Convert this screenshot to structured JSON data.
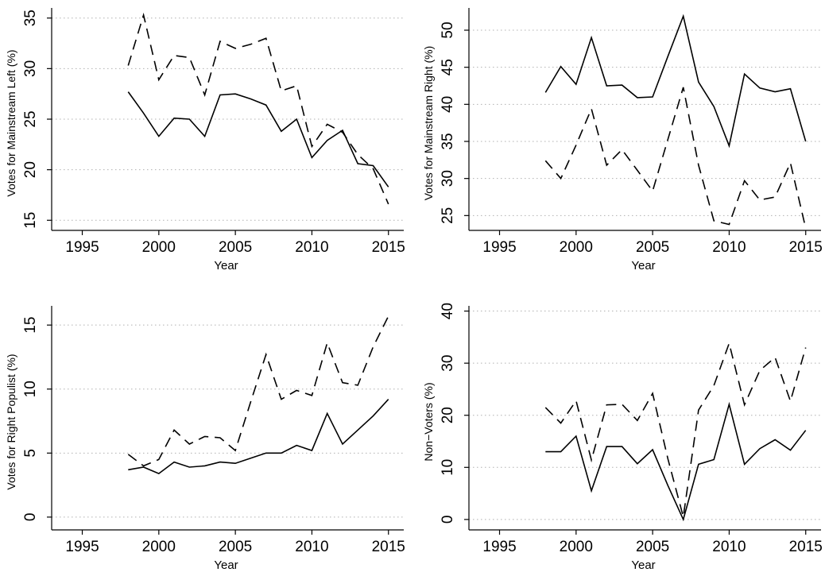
{
  "chart_data": [
    {
      "type": "line",
      "xlabel": "Year",
      "ylabel": "Votes for Mainstream Left (%)",
      "xlim": [
        1993,
        2016
      ],
      "ylim": [
        14,
        36
      ],
      "xticks": [
        1995,
        2000,
        2005,
        2010,
        2015
      ],
      "yticks": [
        15,
        20,
        25,
        30,
        35
      ],
      "grid": true,
      "x": [
        1998,
        1999,
        2000,
        2001,
        2002,
        2003,
        2004,
        2005,
        2006,
        2007,
        2008,
        2009,
        2010,
        2011,
        2012,
        2013,
        2014,
        2015
      ],
      "series": [
        {
          "style": "solid",
          "values": [
            27.7,
            25.6,
            23.3,
            25.1,
            25.0,
            23.3,
            27.4,
            27.5,
            27.0,
            26.4,
            23.8,
            25.0,
            21.2,
            22.9,
            23.9,
            20.6,
            20.4,
            18.3
          ]
        },
        {
          "style": "dashed",
          "values": [
            30.3,
            35.3,
            28.9,
            31.3,
            31.1,
            27.4,
            32.7,
            32.0,
            32.4,
            33.0,
            27.8,
            28.3,
            22.3,
            24.5,
            23.7,
            21.5,
            20.1,
            16.6
          ]
        }
      ]
    },
    {
      "type": "line",
      "xlabel": "Year",
      "ylabel": "Votes for Mainstream Right (%)",
      "xlim": [
        1993,
        2016
      ],
      "ylim": [
        23,
        53
      ],
      "xticks": [
        1995,
        2000,
        2005,
        2010,
        2015
      ],
      "yticks": [
        25,
        30,
        35,
        40,
        45,
        50
      ],
      "grid": true,
      "x": [
        1998,
        1999,
        2000,
        2001,
        2002,
        2003,
        2004,
        2005,
        2006,
        2007,
        2008,
        2009,
        2010,
        2011,
        2012,
        2013,
        2014,
        2015
      ],
      "series": [
        {
          "style": "solid",
          "values": [
            41.6,
            45.1,
            42.7,
            49.0,
            42.5,
            42.6,
            40.9,
            41.0,
            46.5,
            51.9,
            43.0,
            39.7,
            34.4,
            44.1,
            42.2,
            41.7,
            42.1,
            35.0
          ]
        },
        {
          "style": "dashed",
          "values": [
            32.4,
            30.0,
            34.5,
            39.4,
            31.8,
            33.9,
            31.1,
            28.3,
            35.3,
            42.3,
            31.8,
            24.3,
            23.8,
            29.7,
            27.1,
            27.5,
            32.1,
            23.3
          ]
        }
      ]
    },
    {
      "type": "line",
      "xlabel": "Year",
      "ylabel": "Votes for Right Populist (%)",
      "xlim": [
        1993,
        2016
      ],
      "ylim": [
        -1,
        16.5
      ],
      "xticks": [
        1995,
        2000,
        2005,
        2010,
        2015
      ],
      "yticks": [
        0,
        5,
        10,
        15
      ],
      "grid": true,
      "x": [
        1998,
        1999,
        2000,
        2001,
        2002,
        2003,
        2004,
        2005,
        2006,
        2007,
        2008,
        2009,
        2010,
        2011,
        2012,
        2013,
        2014,
        2015
      ],
      "series": [
        {
          "style": "solid",
          "values": [
            3.7,
            3.9,
            3.4,
            4.3,
            3.9,
            4.0,
            4.3,
            4.2,
            4.6,
            5.0,
            5.0,
            5.6,
            5.2,
            8.1,
            5.7,
            6.8,
            7.9,
            9.2
          ]
        },
        {
          "style": "dashed",
          "values": [
            4.9,
            4.0,
            4.5,
            6.8,
            5.7,
            6.3,
            6.2,
            5.2,
            9.0,
            12.7,
            9.2,
            9.9,
            9.5,
            13.6,
            10.5,
            10.3,
            13.3,
            15.7
          ]
        }
      ]
    },
    {
      "type": "line",
      "xlabel": "Year",
      "ylabel": "Non−Voters (%)",
      "xlim": [
        1993,
        2016
      ],
      "ylim": [
        -2,
        41
      ],
      "xticks": [
        1995,
        2000,
        2005,
        2010,
        2015
      ],
      "yticks": [
        0,
        10,
        20,
        30,
        40
      ],
      "grid": true,
      "x": [
        1998,
        1999,
        2000,
        2001,
        2002,
        2003,
        2004,
        2005,
        2006,
        2007,
        2008,
        2009,
        2010,
        2011,
        2012,
        2013,
        2014,
        2015
      ],
      "series": [
        {
          "style": "solid",
          "values": [
            13.0,
            13.0,
            16.0,
            5.5,
            14.0,
            14.0,
            10.7,
            13.4,
            6.5,
            0.0,
            10.6,
            11.5,
            22.1,
            10.6,
            13.6,
            15.3,
            13.3,
            17.1
          ]
        },
        {
          "style": "dashed",
          "values": [
            21.5,
            18.5,
            22.8,
            11.4,
            22.0,
            22.1,
            19.0,
            24.2,
            11.6,
            0.5,
            21.0,
            25.7,
            33.8,
            22.0,
            28.6,
            31.1,
            22.7,
            33.0
          ]
        }
      ]
    }
  ]
}
